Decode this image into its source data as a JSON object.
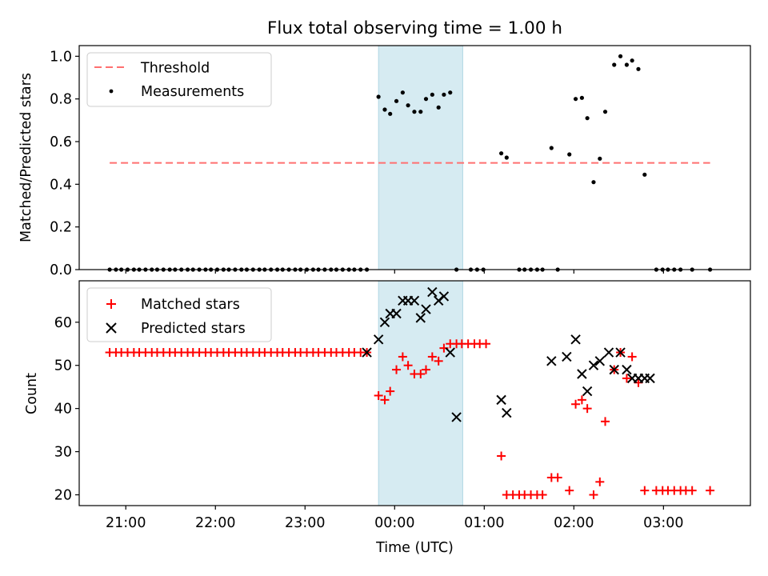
{
  "figure": {
    "title": "Flux total observing time = 1.00 h",
    "xlabel": "Time (UTC)",
    "x_ticks": [
      "21:00",
      "22:00",
      "23:00",
      "00:00",
      "01:00",
      "02:00",
      "03:00"
    ],
    "x_tick_hours": [
      21,
      22,
      23,
      24,
      25,
      26,
      27
    ],
    "xlim_hours": [
      20.48,
      27.97
    ]
  },
  "chart_data": [
    {
      "type": "scatter",
      "ylabel": "Matched/Predicted stars",
      "ylim": [
        0,
        1.05
      ],
      "yticks": [
        0.0,
        0.2,
        0.4,
        0.6,
        0.8,
        1.0
      ],
      "ytick_labels": [
        "0.0",
        "0.2",
        "0.4",
        "0.6",
        "0.8",
        "1.0"
      ],
      "legend_position": "top-left",
      "shaded_span_hours": [
        23.82,
        24.76
      ],
      "threshold": {
        "name": "Threshold",
        "y": 0.5,
        "x_hours": [
          20.82,
          27.52
        ],
        "color": "#ff7070"
      },
      "series": [
        {
          "name": "Measurements",
          "color": "#000000",
          "x_hours": [
            20.82,
            20.89,
            20.95,
            21.02,
            21.09,
            21.15,
            21.22,
            21.29,
            21.35,
            21.42,
            21.49,
            21.55,
            21.62,
            21.69,
            21.75,
            21.82,
            21.89,
            21.95,
            22.02,
            22.09,
            22.15,
            22.22,
            22.29,
            22.35,
            22.42,
            22.49,
            22.55,
            22.62,
            22.69,
            22.75,
            22.82,
            22.89,
            22.95,
            23.02,
            23.09,
            23.15,
            23.22,
            23.29,
            23.35,
            23.42,
            23.49,
            23.55,
            23.62,
            23.69,
            23.82,
            23.89,
            23.95,
            24.02,
            24.09,
            24.15,
            24.22,
            24.29,
            24.35,
            24.42,
            24.49,
            24.55,
            24.62,
            24.69,
            24.85,
            24.92,
            24.99,
            25.19,
            25.25,
            25.39,
            25.45,
            25.52,
            25.59,
            25.65,
            25.75,
            25.82,
            25.95,
            26.02,
            26.09,
            26.15,
            26.22,
            26.29,
            26.35,
            26.45,
            26.52,
            26.59,
            26.65,
            26.72,
            26.79,
            26.92,
            26.99,
            27.05,
            27.12,
            27.19,
            27.32,
            27.52
          ],
          "y": [
            0,
            0,
            0,
            0,
            0,
            0,
            0,
            0,
            0,
            0,
            0,
            0,
            0,
            0,
            0,
            0,
            0,
            0,
            0,
            0,
            0,
            0,
            0,
            0,
            0,
            0,
            0,
            0,
            0,
            0,
            0,
            0,
            0,
            0,
            0,
            0,
            0,
            0,
            0,
            0,
            0,
            0,
            0,
            0,
            0.81,
            0.75,
            0.73,
            0.79,
            0.83,
            0.77,
            0.74,
            0.74,
            0.8,
            0.82,
            0.76,
            0.82,
            0.83,
            0,
            0,
            0,
            0,
            0.545,
            0.525,
            0,
            0,
            0,
            0,
            0,
            0.57,
            0,
            0.54,
            0.8,
            0.805,
            0.71,
            0.41,
            0.52,
            0.74,
            0.96,
            1.0,
            0.96,
            0.98,
            0.94,
            0.445,
            0,
            0,
            0,
            0,
            0,
            0,
            0
          ]
        }
      ]
    },
    {
      "type": "scatter",
      "ylabel": "Count",
      "ylim": [
        17.5,
        69.6
      ],
      "yticks": [
        20,
        30,
        40,
        50,
        60
      ],
      "ytick_labels": [
        "20",
        "30",
        "40",
        "50",
        "60"
      ],
      "legend_position": "top-left",
      "shaded_span_hours": [
        23.82,
        24.76
      ],
      "series": [
        {
          "name": "Matched stars",
          "marker": "plus",
          "color": "#ff0000",
          "x_hours": [
            20.82,
            20.89,
            20.95,
            21.02,
            21.09,
            21.15,
            21.22,
            21.29,
            21.35,
            21.42,
            21.49,
            21.55,
            21.62,
            21.69,
            21.75,
            21.82,
            21.89,
            21.95,
            22.02,
            22.09,
            22.15,
            22.22,
            22.29,
            22.35,
            22.42,
            22.49,
            22.55,
            22.62,
            22.69,
            22.75,
            22.82,
            22.89,
            22.95,
            23.02,
            23.09,
            23.15,
            23.22,
            23.29,
            23.35,
            23.42,
            23.49,
            23.55,
            23.62,
            23.69,
            23.82,
            23.89,
            23.95,
            24.02,
            24.09,
            24.15,
            24.22,
            24.29,
            24.35,
            24.42,
            24.49,
            24.55,
            24.62,
            24.69,
            24.75,
            24.82,
            24.89,
            24.95,
            25.02,
            25.19,
            25.25,
            25.32,
            25.39,
            25.45,
            25.52,
            25.59,
            25.65,
            25.75,
            25.82,
            25.95,
            26.02,
            26.09,
            26.15,
            26.22,
            26.29,
            26.35,
            26.45,
            26.52,
            26.59,
            26.65,
            26.72,
            26.79,
            26.92,
            26.99,
            27.05,
            27.12,
            27.19,
            27.25,
            27.32,
            27.52
          ],
          "y": [
            53,
            53,
            53,
            53,
            53,
            53,
            53,
            53,
            53,
            53,
            53,
            53,
            53,
            53,
            53,
            53,
            53,
            53,
            53,
            53,
            53,
            53,
            53,
            53,
            53,
            53,
            53,
            53,
            53,
            53,
            53,
            53,
            53,
            53,
            53,
            53,
            53,
            53,
            53,
            53,
            53,
            53,
            53,
            53,
            43,
            42,
            44,
            49,
            52,
            50,
            48,
            48,
            49,
            52,
            51,
            54,
            55,
            55,
            55,
            55,
            55,
            55,
            55,
            29,
            20,
            20,
            20,
            20,
            20,
            20,
            20,
            24,
            24,
            21,
            41,
            42,
            40,
            20,
            23,
            37,
            49,
            53,
            47,
            52,
            46,
            21,
            21,
            21,
            21,
            21,
            21,
            21,
            21,
            21
          ]
        },
        {
          "name": "Predicted stars",
          "marker": "x",
          "color": "#000000",
          "x_hours": [
            23.69,
            23.82,
            23.89,
            23.95,
            24.02,
            24.09,
            24.15,
            24.22,
            24.29,
            24.35,
            24.42,
            24.49,
            24.55,
            24.62,
            24.69,
            25.19,
            25.25,
            25.75,
            25.92,
            26.02,
            26.09,
            26.15,
            26.22,
            26.29,
            26.39,
            26.45,
            26.52,
            26.59,
            26.65,
            26.72,
            26.79,
            26.85
          ],
          "y": [
            53,
            56,
            60,
            62,
            62,
            65,
            65,
            65,
            61,
            63,
            67,
            65,
            66,
            53,
            38,
            42,
            39,
            51,
            52,
            56,
            48,
            44,
            50,
            51,
            53,
            49,
            53,
            49,
            47,
            47,
            47,
            47
          ]
        }
      ]
    }
  ]
}
